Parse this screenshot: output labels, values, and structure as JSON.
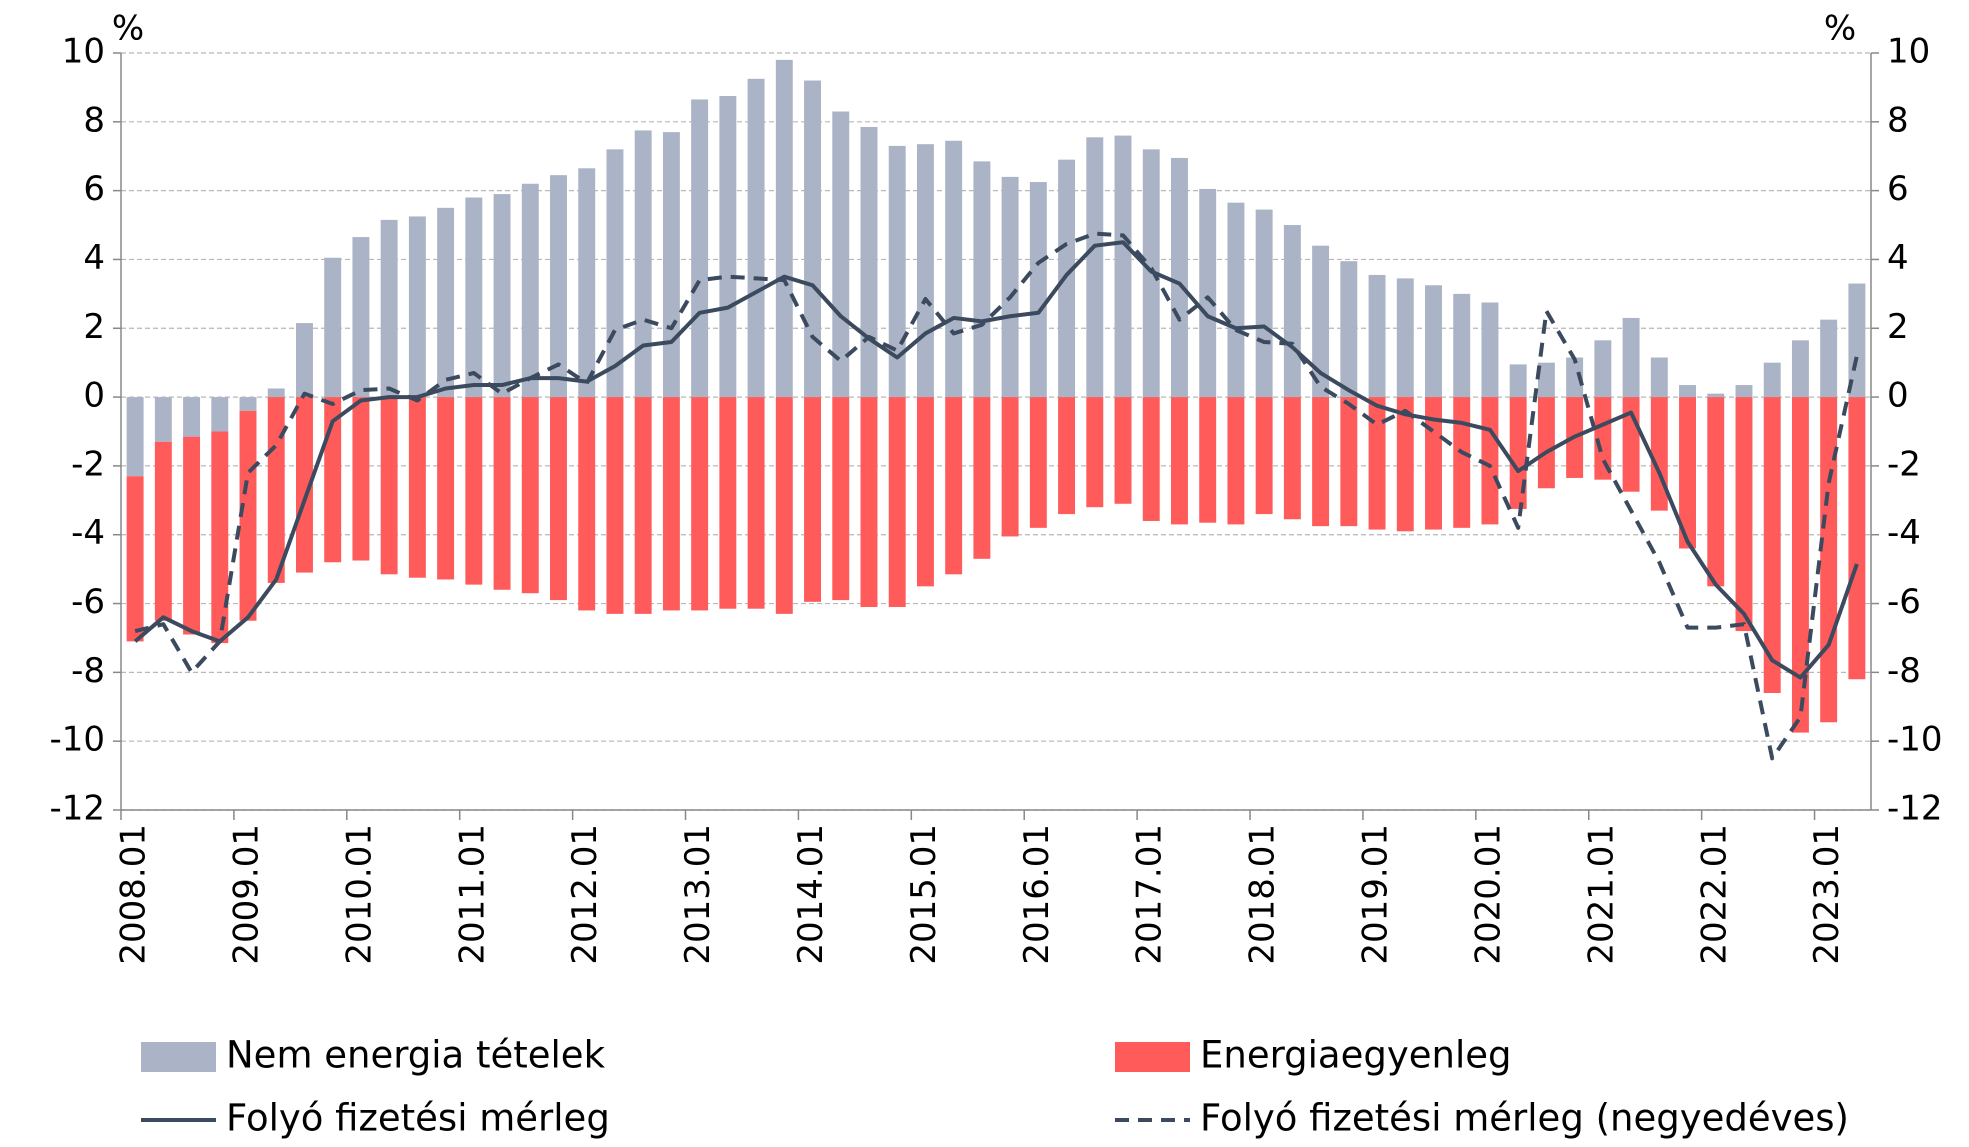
{
  "chart_data": {
    "type": "bar",
    "y_unit": "%",
    "y2_unit": "%",
    "categories": [
      "2008.01",
      null,
      null,
      null,
      "2009.01",
      null,
      null,
      null,
      "2010.01",
      null,
      null,
      null,
      "2011.01",
      null,
      null,
      null,
      "2012.01",
      null,
      null,
      null,
      "2013.01",
      null,
      null,
      null,
      "2014.01",
      null,
      null,
      null,
      "2015.01",
      null,
      null,
      null,
      "2016.01",
      null,
      null,
      null,
      "2017.01",
      null,
      null,
      null,
      "2018.01",
      null,
      null,
      null,
      "2019.01",
      null,
      null,
      null,
      "2020.01",
      null,
      null,
      null,
      "2021.01",
      null,
      null,
      null,
      "2022.01",
      null,
      null,
      null,
      "2023.01",
      null
    ],
    "ylim": [
      -12,
      10
    ],
    "yticks": [
      -12,
      -10,
      -8,
      -6,
      -4,
      -2,
      0,
      2,
      4,
      6,
      8,
      10
    ],
    "y2lim": [
      -12,
      10
    ],
    "y2ticks": [
      -12,
      -10,
      -8,
      -6,
      -4,
      -2,
      0,
      2,
      4,
      6,
      8,
      10
    ],
    "grid": true,
    "series": [
      {
        "name": "Nem energia tételek",
        "type": "bar",
        "color": "#aab4c6",
        "values": [
          -2.3,
          -1.3,
          -1.15,
          -1.0,
          -0.4,
          0.25,
          2.15,
          4.05,
          4.65,
          5.15,
          5.25,
          5.5,
          5.8,
          5.9,
          6.2,
          6.45,
          6.65,
          7.2,
          7.75,
          7.7,
          8.65,
          8.75,
          9.25,
          9.8,
          9.2,
          8.3,
          7.85,
          7.3,
          7.35,
          7.45,
          6.85,
          6.4,
          6.25,
          6.9,
          7.55,
          7.6,
          7.2,
          6.95,
          6.05,
          5.65,
          5.45,
          5.0,
          4.4,
          3.95,
          3.55,
          3.45,
          3.25,
          3.0,
          2.75,
          0.95,
          1.0,
          1.15,
          1.65,
          2.3,
          1.15,
          0.35,
          0.1,
          0.35,
          1.0,
          1.65,
          2.25,
          3.3
        ]
      },
      {
        "name": "Energiaegyenleg",
        "type": "bar",
        "color": "#ff5b5b",
        "values": [
          -4.8,
          -5.2,
          -5.75,
          -6.15,
          -6.1,
          -5.4,
          -5.1,
          -4.8,
          -4.75,
          -5.15,
          -5.25,
          -5.3,
          -5.45,
          -5.6,
          -5.7,
          -5.9,
          -6.2,
          -6.3,
          -6.3,
          -6.2,
          -6.2,
          -6.15,
          -6.15,
          -6.3,
          -5.95,
          -5.9,
          -6.1,
          -6.1,
          -5.5,
          -5.15,
          -4.7,
          -4.05,
          -3.8,
          -3.4,
          -3.2,
          -3.1,
          -3.6,
          -3.7,
          -3.65,
          -3.7,
          -3.4,
          -3.55,
          -3.75,
          -3.75,
          -3.85,
          -3.9,
          -3.85,
          -3.8,
          -3.7,
          -3.25,
          -2.65,
          -2.35,
          -2.4,
          -2.75,
          -3.3,
          -4.4,
          -5.5,
          -6.8,
          -8.6,
          -9.75,
          -9.45,
          -8.2
        ]
      },
      {
        "name": "Folyó fizetési mérleg",
        "type": "line",
        "dash": false,
        "color": "#3b4a5e",
        "values": [
          -7.1,
          -6.4,
          -6.8,
          -7.1,
          -6.4,
          -5.3,
          -3.0,
          -0.7,
          -0.1,
          0.0,
          0.0,
          0.25,
          0.35,
          0.35,
          0.55,
          0.55,
          0.45,
          0.9,
          1.5,
          1.6,
          2.45,
          2.6,
          3.05,
          3.5,
          3.25,
          2.35,
          1.7,
          1.15,
          1.85,
          2.3,
          2.2,
          2.35,
          2.45,
          3.55,
          4.4,
          4.5,
          3.65,
          3.3,
          2.35,
          2.0,
          2.05,
          1.45,
          0.7,
          0.2,
          -0.25,
          -0.5,
          -0.65,
          -0.75,
          -0.95,
          -2.15,
          -1.6,
          -1.15,
          -0.8,
          -0.45,
          -2.2,
          -4.2,
          -5.45,
          -6.3,
          -7.65,
          -8.15,
          -7.2,
          -4.85
        ]
      },
      {
        "name": "Folyó fizetési mérleg (negyedéves)",
        "type": "line",
        "dash": true,
        "color": "#3b4a5e",
        "values": [
          -6.8,
          -6.6,
          -8.0,
          -7.1,
          -2.2,
          -1.4,
          0.1,
          -0.2,
          0.2,
          0.25,
          -0.1,
          0.5,
          0.7,
          0.1,
          0.55,
          0.95,
          0.4,
          1.95,
          2.25,
          2.0,
          3.4,
          3.5,
          3.45,
          3.4,
          1.75,
          1.05,
          1.75,
          1.35,
          2.85,
          1.85,
          2.1,
          2.9,
          3.9,
          4.45,
          4.75,
          4.7,
          3.75,
          2.25,
          2.9,
          1.95,
          1.6,
          1.55,
          0.3,
          -0.2,
          -0.8,
          -0.4,
          -1.0,
          -1.6,
          -2.0,
          -3.8,
          2.5,
          1.1,
          -1.8,
          -3.3,
          -4.8,
          -6.7,
          -6.7,
          -6.6,
          -10.5,
          -9.3,
          -2.5,
          1.2
        ]
      }
    ]
  }
}
